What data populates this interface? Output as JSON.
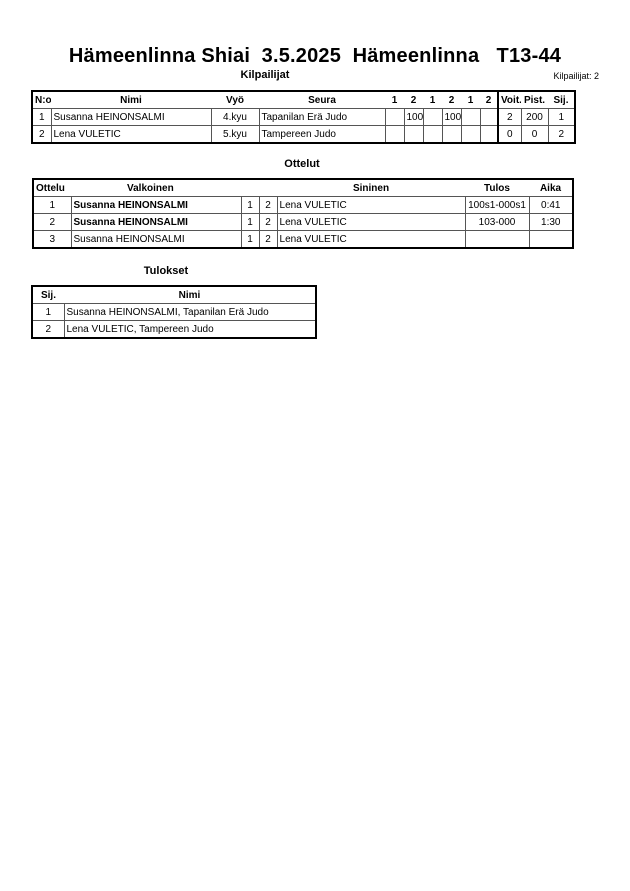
{
  "title": "Hämeenlinna Shiai  3.5.2025  Hämeenlinna   T13-44",
  "competitors": {
    "heading": "Kilpailijat",
    "count_label": "Kilpailijat: 2",
    "columns": [
      "N:o",
      "Nimi",
      "Vyö",
      "Seura",
      "1",
      "2",
      "1",
      "2",
      "1",
      "2",
      "Voit.",
      "Pist.",
      "Sij."
    ],
    "rows": [
      {
        "no": "1",
        "name": "Susanna HEINONSALMI",
        "belt": "4.kyu",
        "club": "Tapanilan Erä Judo",
        "scores": [
          "",
          "100",
          "",
          "100",
          "",
          ""
        ],
        "wins": "2",
        "points": "200",
        "rank": "1"
      },
      {
        "no": "2",
        "name": "Lena VULETIC",
        "belt": "5.kyu",
        "club": "Tampereen Judo",
        "scores": [
          "",
          "",
          "",
          "",
          "",
          ""
        ],
        "wins": "0",
        "points": "0",
        "rank": "2"
      }
    ]
  },
  "matches": {
    "heading": "Ottelut",
    "columns": [
      "Ottelu",
      "Valkoinen",
      "Sininen",
      "Tulos",
      "Aika"
    ],
    "rows": [
      {
        "no": "1",
        "white": "Susanna HEINONSALMI",
        "white_bold": true,
        "c1": "1",
        "c2": "2",
        "blue": "Lena VULETIC",
        "result": "100s1-000s1",
        "time": "0:41"
      },
      {
        "no": "2",
        "white": "Susanna HEINONSALMI",
        "white_bold": true,
        "c1": "1",
        "c2": "2",
        "blue": "Lena VULETIC",
        "result": "103-000",
        "time": "1:30"
      },
      {
        "no": "3",
        "white": "Susanna HEINONSALMI",
        "white_bold": false,
        "c1": "1",
        "c2": "2",
        "blue": "Lena VULETIC",
        "result": "",
        "time": ""
      }
    ]
  },
  "results": {
    "heading": "Tulokset",
    "columns": [
      "Sij.",
      "Nimi"
    ],
    "rows": [
      {
        "rank": "1",
        "name": "Susanna HEINONSALMI, Tapanilan Erä Judo"
      },
      {
        "rank": "2",
        "name": "Lena VULETIC, Tampereen Judo"
      }
    ]
  }
}
